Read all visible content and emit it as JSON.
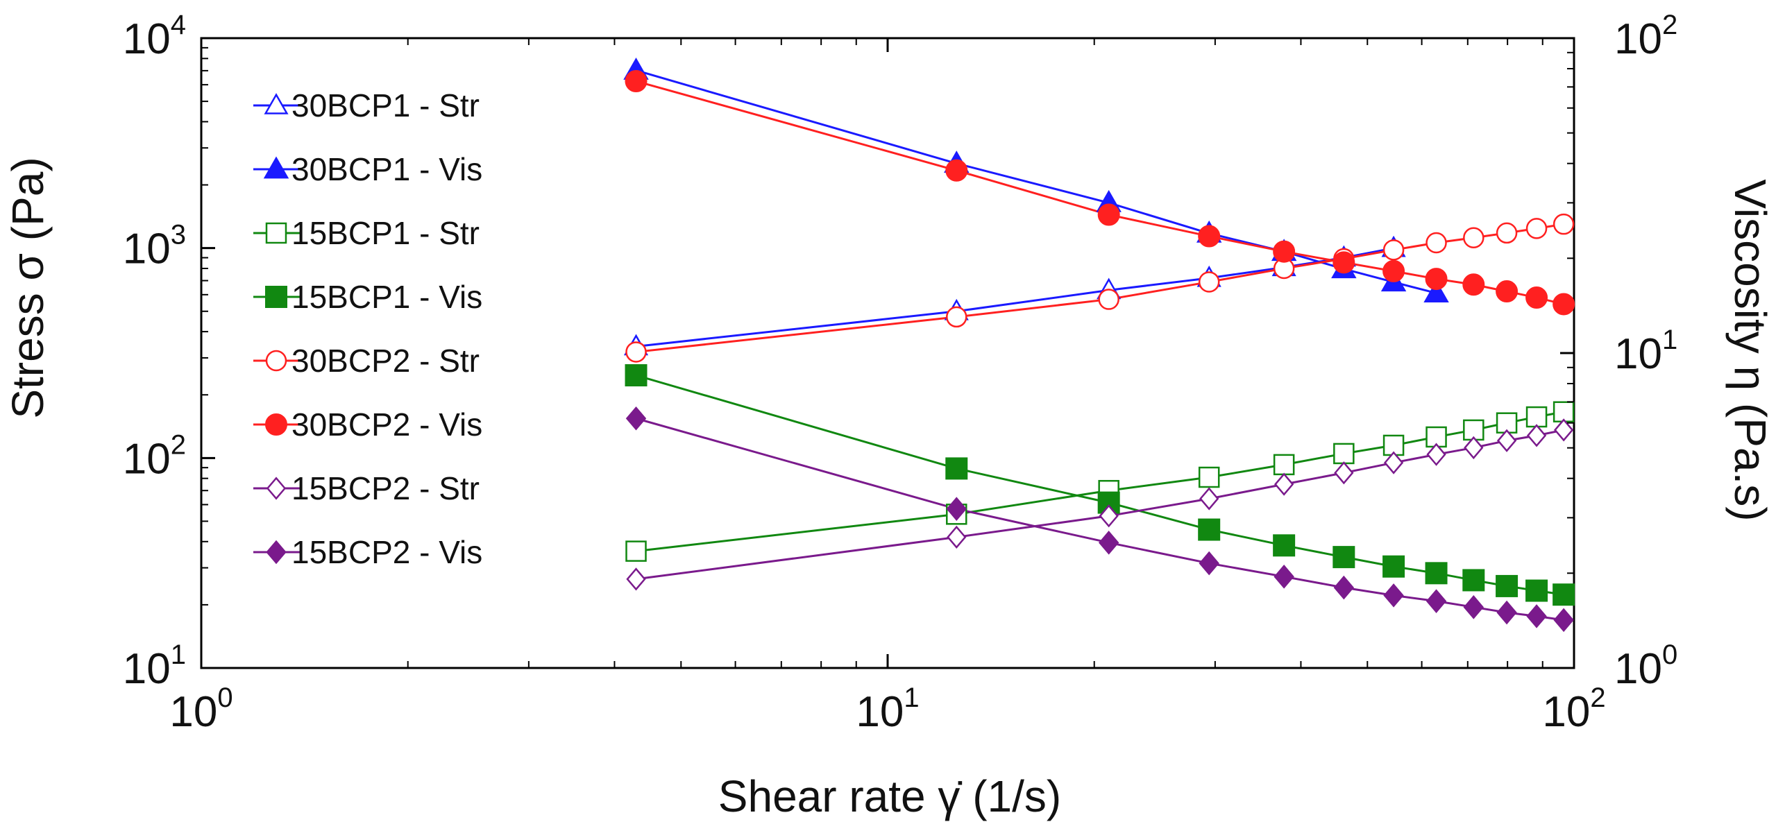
{
  "chart_data": {
    "type": "scatter",
    "title": "",
    "xlabel": "Shear rate γ̇  (1/s)",
    "ylabel": "Stress σ  (Pa)",
    "y2label": "Viscosity η  (Pa.s)",
    "xscale": "log",
    "yscale": "log",
    "y2scale": "log",
    "xlim": [
      1,
      100
    ],
    "ylim": [
      10,
      10000
    ],
    "y2lim": [
      1,
      100
    ],
    "grid": false,
    "legend_position": "top-left",
    "x_ticks": [
      {
        "base": "10",
        "exp": "0",
        "value": 1
      },
      {
        "base": "10",
        "exp": "1",
        "value": 10
      },
      {
        "base": "10",
        "exp": "2",
        "value": 100
      }
    ],
    "y_ticks": [
      {
        "base": "10",
        "exp": "1",
        "value": 10
      },
      {
        "base": "10",
        "exp": "2",
        "value": 100
      },
      {
        "base": "10",
        "exp": "3",
        "value": 1000
      },
      {
        "base": "10",
        "exp": "4",
        "value": 10000
      }
    ],
    "y2_ticks": [
      {
        "base": "10",
        "exp": "0",
        "value": 1
      },
      {
        "base": "10",
        "exp": "1",
        "value": 10
      },
      {
        "base": "10",
        "exp": "2",
        "value": 100
      }
    ],
    "x": [
      4.3,
      12.6,
      21.0,
      29.4,
      37.8,
      46.2,
      54.6,
      63.0,
      71.4,
      79.8,
      88.2,
      96.6
    ],
    "series": [
      {
        "name": "30BCP1 - Str",
        "axis": "left",
        "color": "#1a1aff",
        "marker": "triangle",
        "filled": false,
        "values": [
          340,
          500,
          630,
          720,
          810,
          900,
          1000,
          null,
          null,
          null,
          null,
          null
        ]
      },
      {
        "name": "30BCP1 - Vis",
        "axis": "right",
        "color": "#1a1aff",
        "marker": "triangle",
        "filled": true,
        "values": [
          79,
          40,
          30,
          24,
          21,
          18.5,
          16.8,
          15.5,
          null,
          null,
          null,
          null
        ]
      },
      {
        "name": "15BCP1 - Str",
        "axis": "left",
        "color": "#118811",
        "marker": "square",
        "filled": false,
        "values": [
          36,
          54,
          70,
          81,
          93,
          105,
          115,
          126,
          136,
          147,
          157,
          166
        ]
      },
      {
        "name": "15BCP1 - Vis",
        "axis": "right",
        "color": "#118811",
        "marker": "square",
        "filled": true,
        "values": [
          8.5,
          4.3,
          3.35,
          2.75,
          2.45,
          2.25,
          2.1,
          2.0,
          1.9,
          1.82,
          1.76,
          1.71
        ]
      },
      {
        "name": "30BCP2 - Str",
        "axis": "left",
        "color": "#ff2020",
        "marker": "circle",
        "filled": false,
        "values": [
          320,
          470,
          570,
          690,
          800,
          890,
          980,
          1060,
          1120,
          1180,
          1240,
          1300
        ]
      },
      {
        "name": "30BCP2 - Vis",
        "axis": "right",
        "color": "#ff2020",
        "marker": "circle",
        "filled": true,
        "values": [
          73,
          38,
          27.5,
          23.5,
          21,
          19.4,
          18.2,
          17.2,
          16.5,
          15.7,
          15.0,
          14.3
        ]
      },
      {
        "name": "15BCP2 - Str",
        "axis": "left",
        "color": "#7a1a8c",
        "marker": "diamond",
        "filled": false,
        "values": [
          26.5,
          42,
          53,
          64,
          75,
          85,
          95,
          104,
          112,
          121,
          128,
          136
        ]
      },
      {
        "name": "15BCP2 - Vis",
        "axis": "right",
        "color": "#7a1a8c",
        "marker": "diamond",
        "filled": true,
        "values": [
          6.2,
          3.2,
          2.5,
          2.15,
          1.95,
          1.8,
          1.7,
          1.63,
          1.56,
          1.5,
          1.46,
          1.42
        ]
      }
    ]
  }
}
